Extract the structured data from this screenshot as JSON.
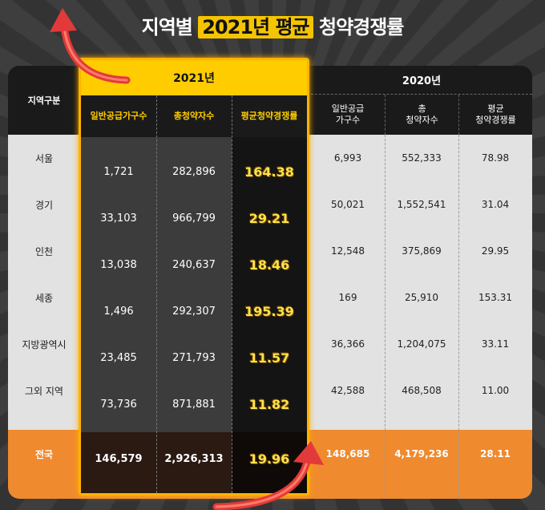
{
  "title": {
    "prefix": "지역별",
    "highlight": "2021년 평균",
    "suffix": "청약경쟁률"
  },
  "header": {
    "region": "지역구분",
    "year_2021": "2021년",
    "year_2020": "2020년",
    "col_supply_1": "일반공급",
    "col_supply_2": "가구수",
    "col_total_1": "총",
    "col_total_2": "청약자수",
    "col_rate_1": "평균",
    "col_rate_2": "청약경쟁률"
  },
  "rows": [
    {
      "region": "서울",
      "y21_supply": "1,721",
      "y21_applicants": "282,896",
      "y21_rate": "164.38",
      "y20_supply": "6,993",
      "y20_applicants": "552,333",
      "y20_rate": "78.98"
    },
    {
      "region": "경기",
      "y21_supply": "33,103",
      "y21_applicants": "966,799",
      "y21_rate": "29.21",
      "y20_supply": "50,021",
      "y20_applicants": "1,552,541",
      "y20_rate": "31.04"
    },
    {
      "region": "인천",
      "y21_supply": "13,038",
      "y21_applicants": "240,637",
      "y21_rate": "18.46",
      "y20_supply": "12,548",
      "y20_applicants": "375,869",
      "y20_rate": "29.95"
    },
    {
      "region": "세종",
      "y21_supply": "1,496",
      "y21_applicants": "292,307",
      "y21_rate": "195.39",
      "y20_supply": "169",
      "y20_applicants": "25,910",
      "y20_rate": "153.31"
    },
    {
      "region": "지방광역시",
      "y21_supply": "23,485",
      "y21_applicants": "271,793",
      "y21_rate": "11.57",
      "y20_supply": "36,366",
      "y20_applicants": "1,204,075",
      "y20_rate": "33.11"
    },
    {
      "region": "그외 지역",
      "y21_supply": "73,736",
      "y21_applicants": "871,881",
      "y21_rate": "11.82",
      "y20_supply": "42,588",
      "y20_applicants": "468,508",
      "y20_rate": "11.00"
    }
  ],
  "total": {
    "region": "전국",
    "y21_supply": "146,579",
    "y21_applicants": "2,926,313",
    "y21_rate": "19.96",
    "y20_supply": "148,685",
    "y20_applicants": "4,179,236",
    "y20_rate": "28.11"
  },
  "colors": {
    "highlight_yellow": "#ffcc00",
    "total_orange": "#f08a2e",
    "arrow_red": "#e23a3a"
  }
}
